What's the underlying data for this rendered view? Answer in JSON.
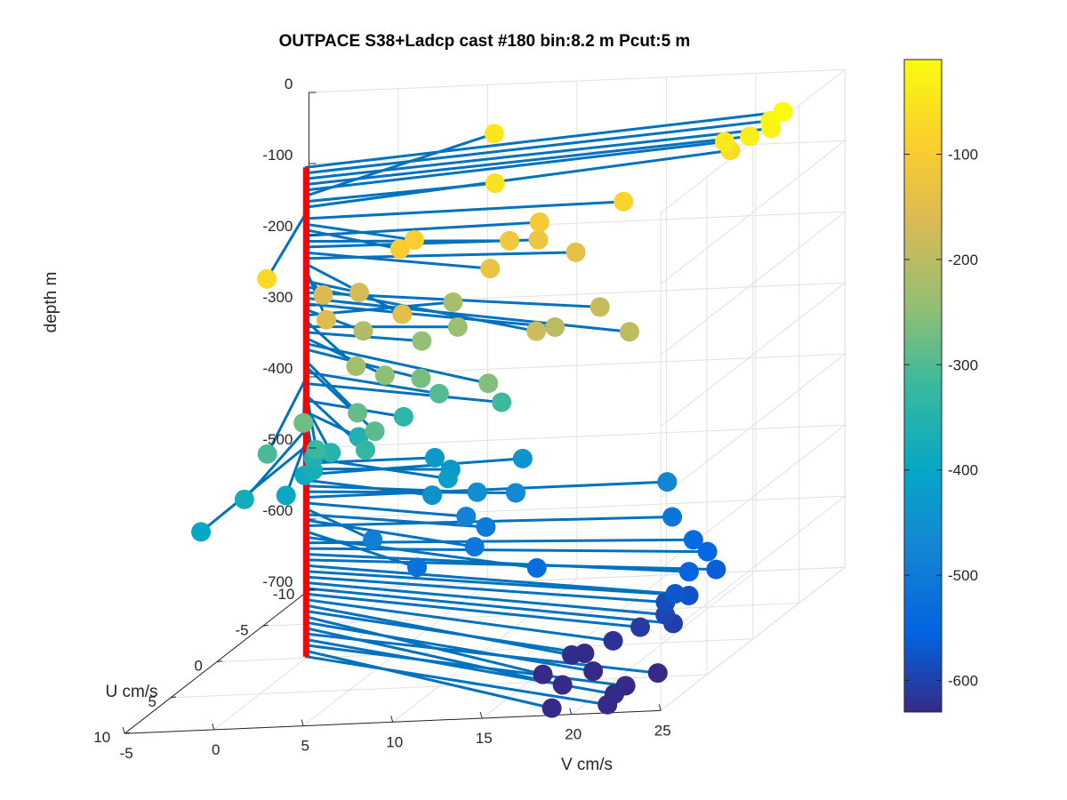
{
  "chart_data": {
    "type": "scatter",
    "plot_kind": "3d quiver/stem: lines from red depth axis at U=0,V=0 to colored markers",
    "title": "OUTPACE S38+Ladcp cast #180 bin:8.2 m  Pcut:5 m",
    "xlabel": "U cm/s",
    "ylabel": "V cm/s",
    "zlabel": "depth m",
    "x_ticks": [
      "-10",
      "-5",
      "0",
      "5",
      "10"
    ],
    "y_ticks": [
      "-5",
      "0",
      "5",
      "10",
      "15",
      "20",
      "25"
    ],
    "z_ticks": [
      "0",
      "-100",
      "-200",
      "-300",
      "-400",
      "-500",
      "-600",
      "-700"
    ],
    "xlim": [
      -10,
      10
    ],
    "ylim": [
      -5,
      25
    ],
    "zlim": [
      -700,
      0
    ],
    "grid": true,
    "colormap": "parula",
    "colorbar": {
      "ticks": [
        "-100",
        "-200",
        "-300",
        "-400",
        "-500",
        "-600"
      ],
      "range": [
        -630,
        -10
      ],
      "location": "right"
    },
    "colors": {
      "line": "#0072bd",
      "depth_axis": "#ff0000",
      "grid": "#e1e1e1",
      "axis": "#262626"
    },
    "points": [
      {
        "depth": -10,
        "u": -5.2,
        "v": 24.0
      },
      {
        "depth": -18,
        "u": -4.8,
        "v": 23.5
      },
      {
        "depth": -26,
        "u": -4.5,
        "v": 23.7
      },
      {
        "depth": -34,
        "u": -4.3,
        "v": 22.6
      },
      {
        "depth": -42,
        "u": -4.5,
        "v": 21.1
      },
      {
        "depth": -50,
        "u": -8.0,
        "v": 6.4
      },
      {
        "depth": -58,
        "u": -1.5,
        "v": 9.8
      },
      {
        "depth": -66,
        "u": -5.7,
        "v": 20.8
      },
      {
        "depth": -74,
        "u": 9.5,
        "v": 2.7
      },
      {
        "depth": -82,
        "u": -0.5,
        "v": 17.5
      },
      {
        "depth": -90,
        "u": 3.0,
        "v": 7.6
      },
      {
        "depth": -98,
        "u": 3.4,
        "v": 7.0
      },
      {
        "depth": -106,
        "u": -0.5,
        "v": 12.8
      },
      {
        "depth": -114,
        "u": 1.2,
        "v": 12.0
      },
      {
        "depth": -122,
        "u": 0.4,
        "v": 13.2
      },
      {
        "depth": -130,
        "u": 3.5,
        "v": 12.1
      },
      {
        "depth": -138,
        "u": 0.8,
        "v": 15.5
      },
      {
        "depth": -146,
        "u": 8.0,
        "v": 9.5
      },
      {
        "depth": -154,
        "u": 7.5,
        "v": 5.0
      },
      {
        "depth": -162,
        "u": 3.0,
        "v": 2.5
      },
      {
        "depth": -170,
        "u": 2.0,
        "v": 4.0
      },
      {
        "depth": -178,
        "u": 8.0,
        "v": 17.0
      },
      {
        "depth": -186,
        "u": 4.0,
        "v": 18.5
      },
      {
        "depth": -194,
        "u": 7.0,
        "v": 21.7
      },
      {
        "depth": -202,
        "u": 5.0,
        "v": 16.5
      },
      {
        "depth": -210,
        "u": 3.5,
        "v": 5.0
      },
      {
        "depth": -218,
        "u": -1.0,
        "v": 7.7
      },
      {
        "depth": -226,
        "u": 7.0,
        "v": 6.4
      },
      {
        "depth": -234,
        "u": 1.0,
        "v": 9.0
      },
      {
        "depth": -242,
        "u": 2.0,
        "v": 7.5
      },
      {
        "depth": -250,
        "u": 6.0,
        "v": 7.5
      },
      {
        "depth": -258,
        "u": 7.0,
        "v": 13.8
      },
      {
        "depth": -266,
        "u": 5.0,
        "v": 9.0
      },
      {
        "depth": -274,
        "u": 10.0,
        "v": 5.0
      },
      {
        "depth": -282,
        "u": 8.0,
        "v": 7.0
      },
      {
        "depth": -290,
        "u": 10.0,
        "v": 9.0
      },
      {
        "depth": -298,
        "u": 4.0,
        "v": 9.5
      },
      {
        "depth": -306,
        "u": 11.0,
        "v": 3.5
      },
      {
        "depth": -314,
        "u": 4.0,
        "v": 13.0
      },
      {
        "depth": -322,
        "u": 9.0,
        "v": 5.2
      },
      {
        "depth": -330,
        "u": 8.5,
        "v": 7.7
      },
      {
        "depth": -338,
        "u": 3.0,
        "v": 7.0
      },
      {
        "depth": -346,
        "u": 7.0,
        "v": 5.0
      },
      {
        "depth": -354,
        "u": 4.0,
        "v": 5.0
      },
      {
        "depth": -362,
        "u": 6.0,
        "v": 3.5
      },
      {
        "depth": -370,
        "u": 7.0,
        "v": 4.0
      },
      {
        "depth": -378,
        "u": 10.0,
        "v": 1.7
      },
      {
        "depth": -386,
        "u": 6.0,
        "v": 3.0
      },
      {
        "depth": -394,
        "u": 8.0,
        "v": 3.0
      },
      {
        "depth": -402,
        "u": 12.0,
        "v": 0.3
      },
      {
        "depth": -418,
        "u": 4.0,
        "v": 10.0
      },
      {
        "depth": -426,
        "u": 0.0,
        "v": 7.2
      },
      {
        "depth": -434,
        "u": 1.0,
        "v": 8.6
      },
      {
        "depth": -442,
        "u": -1.0,
        "v": 11.6
      },
      {
        "depth": -450,
        "u": 3.0,
        "v": 8.6
      },
      {
        "depth": -458,
        "u": 2.0,
        "v": 10.6
      },
      {
        "depth": -466,
        "u": 1.5,
        "v": 12.5
      },
      {
        "depth": -474,
        "u": 0.0,
        "v": 20.2
      },
      {
        "depth": -482,
        "u": 3.0,
        "v": 10.5
      },
      {
        "depth": -490,
        "u": 5.0,
        "v": 6.3
      },
      {
        "depth": -498,
        "u": 3.0,
        "v": 11.6
      },
      {
        "depth": -506,
        "u": 5.0,
        "v": 12.0
      },
      {
        "depth": -514,
        "u": 1.0,
        "v": 21.0
      },
      {
        "depth": -522,
        "u": 6.0,
        "v": 9.3
      },
      {
        "depth": -530,
        "u": 6.0,
        "v": 16.0
      },
      {
        "depth": -538,
        "u": 2.0,
        "v": 22.7
      },
      {
        "depth": -546,
        "u": 3.0,
        "v": 24.0
      },
      {
        "depth": -554,
        "u": 5.0,
        "v": 24.0
      },
      {
        "depth": -562,
        "u": 4.0,
        "v": 25.0
      },
      {
        "depth": -570,
        "u": 6.5,
        "v": 24.0
      },
      {
        "depth": -578,
        "u": 6.0,
        "v": 24.5
      },
      {
        "depth": -586,
        "u": 6.0,
        "v": 23.2
      },
      {
        "depth": -594,
        "u": 7.0,
        "v": 23.7
      },
      {
        "depth": -602,
        "u": 7.5,
        "v": 24.4
      },
      {
        "depth": -610,
        "u": 7.0,
        "v": 22.3
      },
      {
        "depth": -618,
        "u": 8.0,
        "v": 21.3
      },
      {
        "depth": -626,
        "u": 9.0,
        "v": 19.5
      },
      {
        "depth": -634,
        "u": 8.0,
        "v": 19.7
      },
      {
        "depth": -642,
        "u": 10.0,
        "v": 18.4
      },
      {
        "depth": -650,
        "u": 9.0,
        "v": 20.7
      },
      {
        "depth": -658,
        "u": 10.0,
        "v": 19.5
      },
      {
        "depth": -666,
        "u": 8.0,
        "v": 23.8
      },
      {
        "depth": -674,
        "u": 10.0,
        "v": 22.4
      },
      {
        "depth": -682,
        "u": 8.0,
        "v": 22.0
      },
      {
        "depth": -690,
        "u": 10.0,
        "v": 18.9
      },
      {
        "depth": -698,
        "u": 9.0,
        "v": 21.5
      }
    ]
  }
}
